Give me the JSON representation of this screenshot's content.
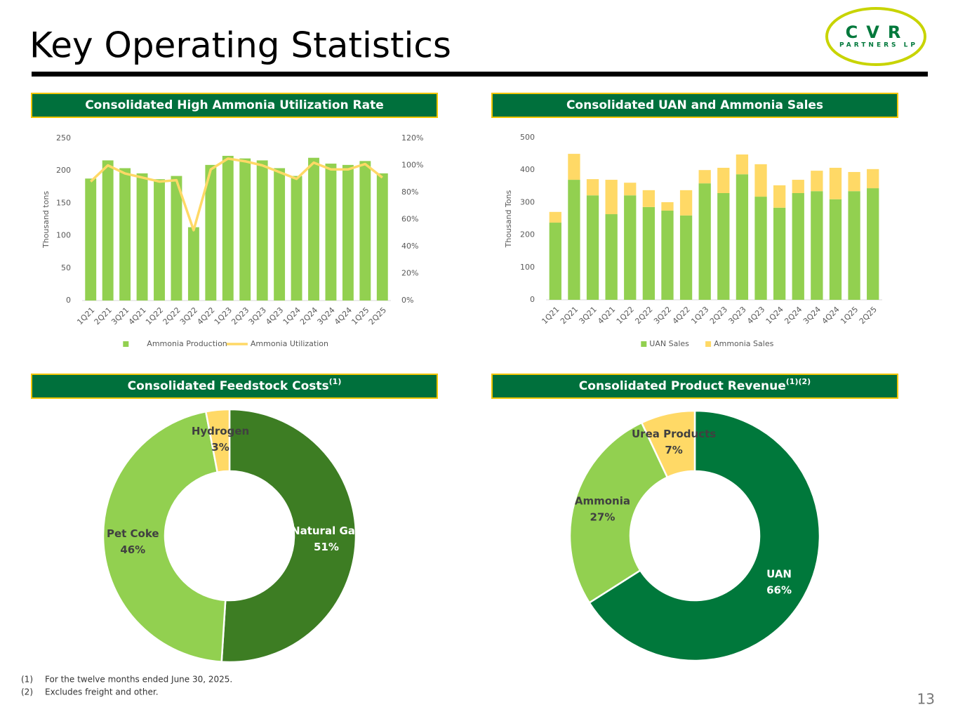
{
  "header": {
    "title": "Key Operating Statistics",
    "logo": {
      "name": "CVR",
      "subname": "PARTNERS LP"
    }
  },
  "chart_data": [
    {
      "type": "bar",
      "title": "Consolidated High Ammonia Utilization Rate",
      "y_label": "Thousand tons",
      "categories": [
        "1Q21",
        "2Q21",
        "3Q21",
        "4Q21",
        "1Q22",
        "2Q22",
        "3Q22",
        "4Q22",
        "1Q23",
        "2Q23",
        "3Q23",
        "4Q23",
        "1Q24",
        "2Q24",
        "3Q24",
        "4Q24",
        "1Q25",
        "2Q25"
      ],
      "series": [
        {
          "name": "Ammonia Production",
          "type": "bar",
          "color": "#92d050",
          "values": [
            188,
            216,
            204,
            196,
            187,
            192,
            113,
            209,
            223,
            219,
            216,
            204,
            192,
            220,
            211,
            209,
            215,
            196
          ]
        },
        {
          "name": "Ammonia Utilization",
          "type": "line",
          "axis": "y2",
          "color": "#ffd966",
          "values": [
            88,
            100,
            94,
            91,
            88,
            89,
            52,
            97,
            105,
            103,
            100,
            95,
            90,
            102,
            97,
            97,
            101,
            91
          ]
        }
      ],
      "ylim": [
        0,
        250
      ],
      "yticks": [
        0,
        50,
        100,
        150,
        200,
        250
      ],
      "y2lim": [
        0,
        120
      ],
      "y2ticks": [
        {
          "value": 0,
          "label": "0%"
        },
        {
          "value": 20,
          "label": "20%"
        },
        {
          "value": 40,
          "label": "40%"
        },
        {
          "value": 60,
          "label": "60%"
        },
        {
          "value": 80,
          "label": "80%"
        },
        {
          "value": 100,
          "label": "100%"
        },
        {
          "value": 120,
          "label": "120%"
        }
      ],
      "legend": "bottom"
    },
    {
      "type": "stacked_bar",
      "title": "Consolidated UAN and Ammonia Sales",
      "y_label": "Thousand Tons",
      "categories": [
        "1Q21",
        "2Q21",
        "3Q21",
        "4Q21",
        "1Q22",
        "2Q22",
        "3Q22",
        "4Q22",
        "1Q23",
        "2Q23",
        "3Q23",
        "4Q23",
        "1Q24",
        "2Q24",
        "3Q24",
        "4Q24",
        "1Q25",
        "2Q25"
      ],
      "series": [
        {
          "name": "UAN Sales",
          "color": "#92d050",
          "values": [
            238,
            370,
            322,
            264,
            322,
            286,
            275,
            260,
            359,
            329,
            387,
            318,
            284,
            329,
            335,
            310,
            335,
            344
          ]
        },
        {
          "name": "Ammonia Sales",
          "color": "#ffd966",
          "values": [
            33,
            80,
            50,
            106,
            39,
            52,
            26,
            78,
            41,
            78,
            61,
            100,
            69,
            41,
            63,
            97,
            59,
            59
          ]
        }
      ],
      "ylim": [
        0,
        500
      ],
      "yticks": [
        0,
        100,
        200,
        300,
        400,
        500
      ],
      "legend": "bottom"
    },
    {
      "type": "donut",
      "title": "Consolidated Feedstock Costs",
      "title_superscript": "(1)",
      "categories": [
        "Natural Gas",
        "Pet Coke",
        "Hydrogen"
      ],
      "values": [
        51,
        46,
        3
      ],
      "value_labels": [
        "51%",
        "46%",
        "3%"
      ],
      "colors": [
        "#3d7d23",
        "#92d050",
        "#ffd966"
      ]
    },
    {
      "type": "donut",
      "title": "Consolidated Product Revenue",
      "title_superscript": "(1)(2)",
      "categories": [
        "UAN",
        "Ammonia",
        "Urea Products"
      ],
      "values": [
        66,
        27,
        7
      ],
      "value_labels": [
        "66%",
        "27%",
        "7%"
      ],
      "colors": [
        "#00783b",
        "#92d050",
        "#ffd966"
      ]
    }
  ],
  "footnotes": [
    {
      "marker": "(1)",
      "text": "For the twelve months ended June 30, 2025."
    },
    {
      "marker": "(2)",
      "text": "Excludes freight and other."
    }
  ],
  "page_number": "13"
}
